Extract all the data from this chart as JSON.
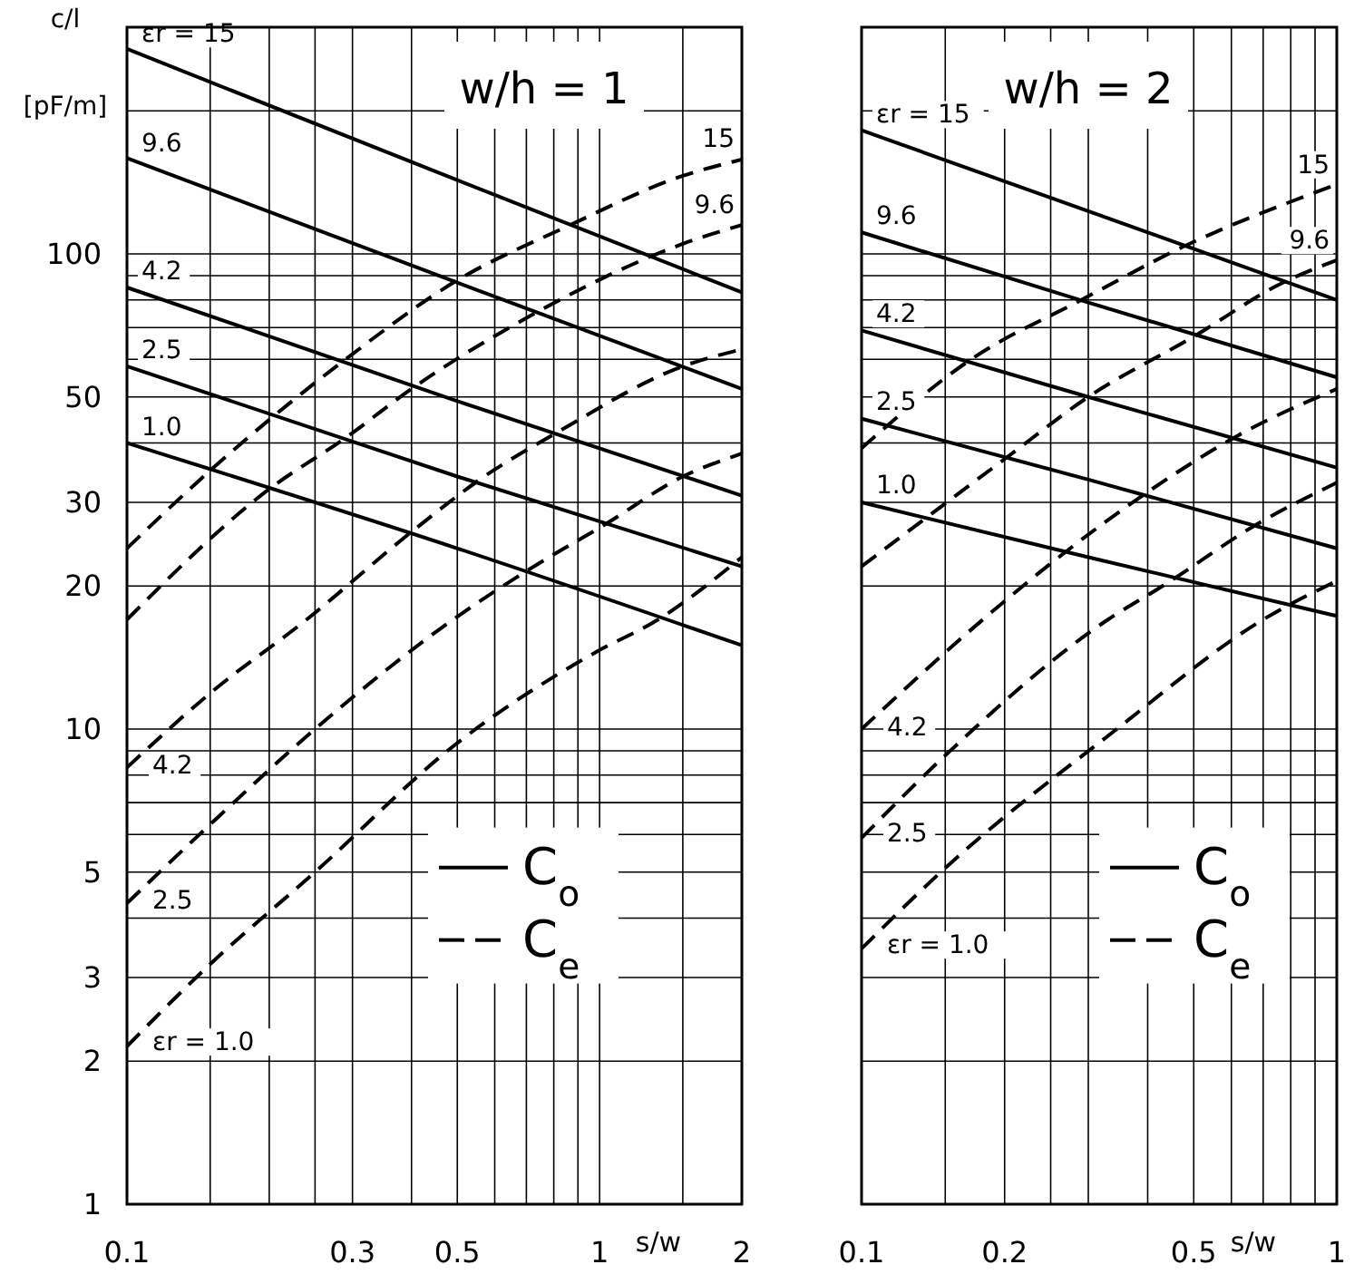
{
  "chart_data": [
    {
      "type": "line",
      "title": "w/h = 1",
      "xlabel": "s/w",
      "ylabel": "c/l [pF/m]",
      "log": "xy",
      "grid": true,
      "xlim": [
        0.1,
        2
      ],
      "ylim": [
        1,
        300
      ],
      "xticks": [
        0.1,
        {
          "value": 0.15,
          "label": null
        },
        {
          "value": 0.2,
          "label": null
        },
        {
          "value": 0.25,
          "label": null
        },
        0.3,
        {
          "value": 0.4,
          "label": null
        },
        0.5,
        {
          "value": 0.6,
          "label": null
        },
        {
          "value": 0.7,
          "label": null
        },
        {
          "value": 0.8,
          "label": null
        },
        {
          "value": 0.9,
          "label": null
        },
        1,
        {
          "value": 1.5,
          "label": null
        },
        2
      ],
      "yticks": [
        1,
        2,
        3,
        {
          "value": 4,
          "label": null
        },
        5,
        {
          "value": 6,
          "label": null
        },
        {
          "value": 7,
          "label": null
        },
        {
          "value": 8,
          "label": null
        },
        {
          "value": 9,
          "label": null
        },
        10,
        20,
        30,
        {
          "value": 40,
          "label": null
        },
        50,
        {
          "value": 60,
          "label": null
        },
        {
          "value": 70,
          "label": null
        },
        {
          "value": 80,
          "label": null
        },
        {
          "value": 90,
          "label": null
        },
        100,
        {
          "value": 200,
          "label": null
        },
        {
          "value": 300,
          "label": null
        }
      ],
      "annotations": [
        "C$_{o}$",
        "C$_{e}$"
      ],
      "series": [
        {
          "name": "εr = 15",
          "color": "#000000",
          "line_style": "solid",
          "x": [
            0.1,
            0.5,
            2
          ],
          "values": [
            270,
            143,
            83
          ]
        },
        {
          "name": "9.6",
          "color": "#000000",
          "line_style": "solid",
          "x": [
            0.1,
            0.5,
            2
          ],
          "values": [
            159,
            87,
            52
          ]
        },
        {
          "name": "4.2",
          "color": "#000000",
          "line_style": "solid",
          "x": [
            0.1,
            0.5,
            2
          ],
          "values": [
            85,
            49,
            31
          ]
        },
        {
          "name": "2.5",
          "color": "#000000",
          "line_style": "solid",
          "x": [
            0.1,
            0.5,
            2
          ],
          "values": [
            58,
            34,
            22
          ]
        },
        {
          "name": "1.0",
          "color": "#000000",
          "line_style": "solid",
          "x": [
            0.1,
            0.5,
            2
          ],
          "values": [
            40,
            24,
            15
          ]
        },
        {
          "name": "15",
          "color": "#000000",
          "line_style": "dashed",
          "x": [
            0.1,
            0.15,
            0.29,
            0.5,
            0.85,
            1.5,
            2
          ],
          "values": [
            24,
            35,
            60,
            88,
            114,
            146,
            158
          ]
        },
        {
          "name": "9.6",
          "color": "#000000",
          "line_style": "dashed",
          "x": [
            0.1,
            0.2,
            0.29,
            0.4,
            0.73,
            1.26,
            1.5,
            2
          ],
          "values": [
            17,
            32,
            41,
            52,
            75,
            98,
            105,
            115
          ]
        },
        {
          "name": "4.2",
          "color": "#000000",
          "line_style": "dashed",
          "x": [
            0.1,
            0.15,
            0.24,
            0.4,
            0.57,
            0.81,
            1.5,
            2
          ],
          "values": [
            8.3,
            11.9,
            17,
            26,
            34,
            42,
            58,
            63
          ]
        },
        {
          "name": "2.5",
          "color": "#000000",
          "line_style": "dashed",
          "x": [
            0.1,
            0.15,
            0.25,
            0.49,
            0.7,
            1.03,
            1.5,
            2
          ],
          "values": [
            4.3,
            6.3,
            10,
            17,
            21.5,
            27,
            34,
            38
          ]
        },
        {
          "name": "εr = 1.0",
          "color": "#000000",
          "line_style": "dashed",
          "x": [
            0.1,
            0.15,
            0.25,
            0.49,
            0.98,
            1.33,
            2
          ],
          "values": [
            2.15,
            3.2,
            5,
            9.2,
            14.5,
            17,
            23
          ]
        }
      ]
    },
    {
      "type": "line",
      "title": "w/h = 2",
      "xlabel": "s/w",
      "log": "xy",
      "grid": true,
      "tick_labels": "x",
      "xlim": [
        0.1,
        1
      ],
      "ylim": [
        1,
        300
      ],
      "xticks": [
        0.1,
        {
          "value": 0.15,
          "label": null
        },
        0.2,
        {
          "value": 0.25,
          "label": null
        },
        {
          "value": 0.3,
          "label": null
        },
        {
          "value": 0.4,
          "label": null
        },
        0.5,
        {
          "value": 0.6,
          "label": null
        },
        {
          "value": 0.7,
          "label": null
        },
        {
          "value": 0.8,
          "label": null
        },
        {
          "value": 0.9,
          "label": null
        },
        1
      ],
      "yticks": [
        {
          "value": 1,
          "label": null
        },
        {
          "value": 2,
          "label": null
        },
        {
          "value": 3,
          "label": null
        },
        {
          "value": 4,
          "label": null
        },
        {
          "value": 5,
          "label": null
        },
        {
          "value": 6,
          "label": null
        },
        {
          "value": 7,
          "label": null
        },
        {
          "value": 8,
          "label": null
        },
        {
          "value": 9,
          "label": null
        },
        {
          "value": 10,
          "label": null
        },
        {
          "value": 20,
          "label": null
        },
        {
          "value": 30,
          "label": null
        },
        {
          "value": 40,
          "label": null
        },
        {
          "value": 50,
          "label": null
        },
        {
          "value": 60,
          "label": null
        },
        {
          "value": 70,
          "label": null
        },
        {
          "value": 80,
          "label": null
        },
        {
          "value": 90,
          "label": null
        },
        {
          "value": 100,
          "label": null
        },
        {
          "value": 200,
          "label": null
        },
        {
          "value": 300,
          "label": null
        }
      ],
      "annotations": [
        "C$_{o}$",
        "C$_{e}$"
      ],
      "series": [
        {
          "name": "εr = 15",
          "color": "#000000",
          "line_style": "solid",
          "x": [
            0.1,
            0.3,
            1
          ],
          "values": [
            182,
            123,
            80
          ]
        },
        {
          "name": "9.6",
          "color": "#000000",
          "line_style": "solid",
          "x": [
            0.1,
            0.3,
            1
          ],
          "values": [
            111,
            79,
            55
          ]
        },
        {
          "name": "4.2",
          "color": "#000000",
          "line_style": "solid",
          "x": [
            0.1,
            0.3,
            1
          ],
          "values": [
            69,
            50,
            35.5
          ]
        },
        {
          "name": "2.5",
          "color": "#000000",
          "line_style": "solid",
          "x": [
            0.1,
            0.3,
            1
          ],
          "values": [
            45,
            33.5,
            24
          ]
        },
        {
          "name": "1.0",
          "color": "#000000",
          "line_style": "solid",
          "x": [
            0.1,
            0.3,
            1
          ],
          "values": [
            30,
            23,
            17.3
          ]
        },
        {
          "name": "15",
          "color": "#000000",
          "line_style": "dashed",
          "x": [
            0.1,
            0.17,
            0.29,
            0.47,
            1
          ],
          "values": [
            39,
            60,
            80,
            103,
            140
          ]
        },
        {
          "name": "9.6",
          "color": "#000000",
          "line_style": "dashed",
          "x": [
            0.1,
            0.2,
            0.3,
            0.5,
            0.77,
            1
          ],
          "values": [
            22,
            37,
            50,
            67,
            87,
            97
          ]
        },
        {
          "name": "4.2",
          "color": "#000000",
          "line_style": "dashed",
          "x": [
            0.1,
            0.18,
            0.26,
            0.39,
            0.62,
            1
          ],
          "values": [
            10,
            17,
            23,
            31,
            41.5,
            52
          ]
        },
        {
          "name": "2.5",
          "color": "#000000",
          "line_style": "dashed",
          "x": [
            0.1,
            0.15,
            0.33,
            0.43,
            0.68,
            1
          ],
          "values": [
            5.9,
            8.8,
            17,
            20,
            27,
            33
          ]
        },
        {
          "name": "εr = 1.0",
          "color": "#000000",
          "line_style": "dashed",
          "x": [
            0.1,
            0.15,
            0.34,
            0.7,
            1
          ],
          "values": [
            3.45,
            5.1,
            9.9,
            17,
            20.5
          ]
        }
      ]
    }
  ]
}
